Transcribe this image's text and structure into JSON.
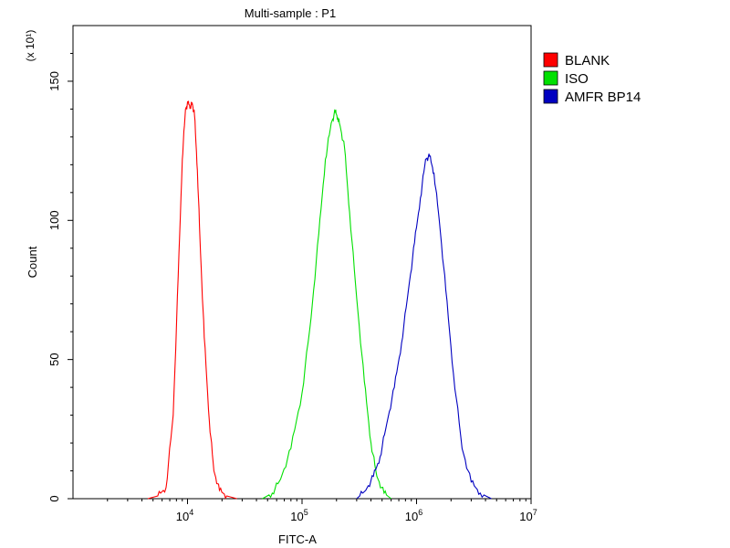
{
  "chart_data": {
    "type": "line",
    "title": "Multi-sample : P1",
    "xlabel": "FITC-A",
    "ylabel": "Count",
    "y_multiplier_label": "(x 10¹)",
    "x_scale": "log",
    "xlim": [
      1000,
      10000000
    ],
    "ylim": [
      0,
      170
    ],
    "x_ticks": [
      {
        "value": 10000,
        "base": "10",
        "exp": "4"
      },
      {
        "value": 100000,
        "base": "10",
        "exp": "5"
      },
      {
        "value": 1000000,
        "base": "10",
        "exp": "6"
      },
      {
        "value": 10000000,
        "base": "10",
        "exp": "7"
      }
    ],
    "y_ticks": [
      0,
      50,
      100,
      150
    ],
    "grid": false,
    "legend_position": "top-right",
    "series": [
      {
        "name": "BLANK",
        "color": "#ff0000",
        "x": [
          4500,
          5500,
          6500,
          7500,
          8300,
          9000,
          9600,
          10100,
          10600,
          11000,
          11500,
          12200,
          13000,
          14000,
          15500,
          17000,
          19000,
          22000,
          27000
        ],
        "y": [
          0,
          1,
          4,
          30,
          80,
          122,
          140,
          142,
          141,
          142,
          138,
          118,
          88,
          58,
          28,
          10,
          3,
          1,
          0
        ]
      },
      {
        "name": "ISO",
        "color": "#00e000",
        "x": [
          45000,
          55000,
          65000,
          80000,
          100000,
          120000,
          140000,
          160000,
          180000,
          195000,
          205000,
          215000,
          235000,
          260000,
          300000,
          350000,
          400000,
          450000,
          520000,
          600000
        ],
        "y": [
          0,
          2,
          7,
          18,
          38,
          65,
          95,
          122,
          135,
          139,
          137,
          134,
          126,
          103,
          72,
          42,
          20,
          8,
          2,
          0
        ]
      },
      {
        "name": "AMFR BP14",
        "color": "#0000c0",
        "x": [
          300000,
          360000,
          420000,
          480000,
          550000,
          640000,
          740000,
          850000,
          960000,
          1080000,
          1200000,
          1300000,
          1420000,
          1580000,
          1800000,
          2100000,
          2500000,
          3000000,
          3600000,
          4500000
        ],
        "y": [
          0,
          3,
          8,
          15,
          27,
          40,
          56,
          75,
          92,
          108,
          122,
          123,
          117,
          100,
          75,
          45,
          18,
          6,
          2,
          0
        ]
      }
    ]
  }
}
